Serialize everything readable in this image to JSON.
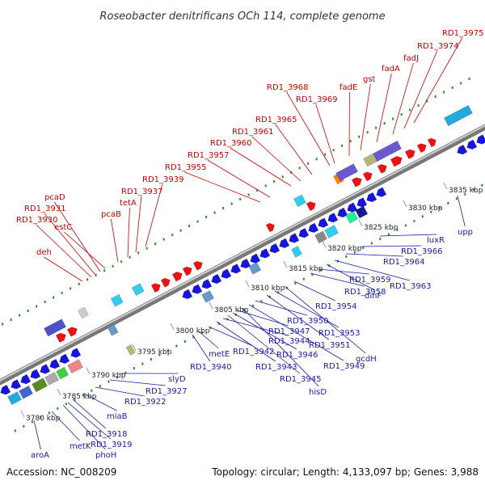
{
  "title": "Roseobacter denitrificans OCh 114, complete genome",
  "footer": {
    "accession": "Accession: NC_008209",
    "summary": "Topology: circular; Length: 4,133,097 bp; Genes: 3,988"
  },
  "colors": {
    "backbone": "#999999",
    "top_label": "#cc0000",
    "bottom_label": "#1a1aa8",
    "tick": "#2e8b2e",
    "forward_gene": "#ee1111",
    "reverse_gene": "#1515dd"
  },
  "kbp_labels": [
    "3780 kbp",
    "3785 kbp",
    "3790 kbp",
    "3795 kbp",
    "3800 kbp",
    "3805 kbp",
    "3810 kbp",
    "3815 kbp",
    "3820 kbp",
    "3825 kbp",
    "3830 kbp",
    "3835 kbp"
  ],
  "top_genes": [
    "deh",
    "RD1_3930",
    "RD1_3931",
    "pcaD",
    "estC",
    "pcaB",
    "tetA",
    "RD1_3937",
    "RD1_3939",
    "RD1_3955",
    "RD1_3957",
    "RD1_3960",
    "RD1_3961",
    "RD1_3965",
    "RD1_3968",
    "RD1_3969",
    "fadE",
    "gst",
    "fadA",
    "fadJ",
    "RD1_3974",
    "RD1_3975"
  ],
  "bottom_genes": [
    "aroA",
    "metK",
    "phoH",
    "RD1_3919",
    "RD1_3918",
    "miaB",
    "RD1_3922",
    "RD1_3927",
    "slyD",
    "RD1_3940",
    "metE",
    "RD1_3942",
    "RD1_3943",
    "RD1_3944",
    "RD1_3945",
    "RD1_3946",
    "RD1_3947",
    "hisD",
    "RD1_3949",
    "RD1_3950",
    "RD1_3951",
    "RD1_3953",
    "gcdH",
    "RD1_3954",
    "RD1_3958",
    "RD1_3959",
    "dinF",
    "RD1_3963",
    "RD1_3964",
    "RD1_3966",
    "luxR",
    "upp"
  ]
}
